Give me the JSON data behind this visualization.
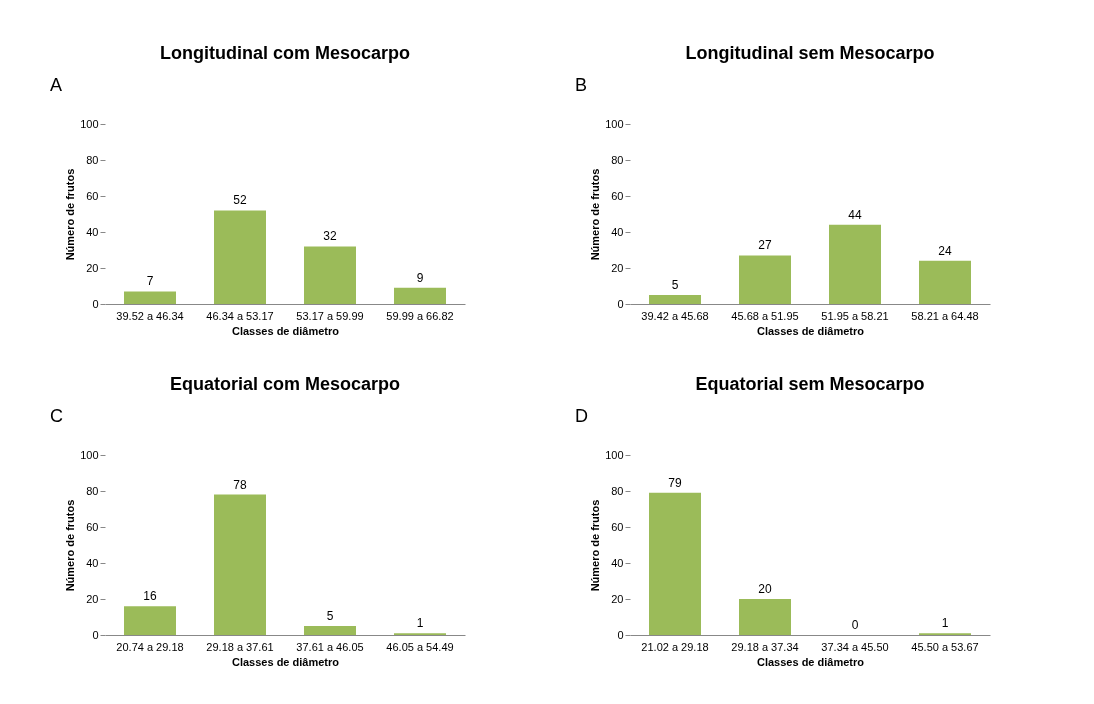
{
  "chart_data": [
    {
      "type": "bar",
      "title": "Longitudinal com Mesocarpo",
      "annotations": [
        "A"
      ],
      "xlabel": "Classes de diâmetro",
      "ylabel": "Número de frutos",
      "categories": [
        "39.52 a 46.34",
        "46.34 a 53.17",
        "53.17 a 59.99",
        "59.99 a 66.82"
      ],
      "values": [
        7,
        52,
        32,
        9
      ],
      "color": "#9bbb59",
      "ylim": [
        0,
        100
      ],
      "yticks": [
        0,
        20,
        40,
        60,
        80,
        100
      ],
      "data_labels": true,
      "grid": false
    },
    {
      "type": "bar",
      "title": "Longitudinal sem Mesocarpo",
      "annotations": [
        "B"
      ],
      "xlabel": "Classes de diâmetro",
      "ylabel": "Número de frutos",
      "categories": [
        "39.42 a 45.68",
        "45.68 a 51.95",
        "51.95 a 58.21",
        "58.21 a 64.48"
      ],
      "values": [
        5,
        27,
        44,
        24
      ],
      "color": "#9bbb59",
      "ylim": [
        0,
        100
      ],
      "yticks": [
        0,
        20,
        40,
        60,
        80,
        100
      ],
      "data_labels": true,
      "grid": false
    },
    {
      "type": "bar",
      "title": "Equatorial com Mesocarpo",
      "annotations": [
        "C"
      ],
      "xlabel": "Classes de diâmetro",
      "ylabel": "Número de frutos",
      "categories": [
        "20.74 a 29.18",
        "29.18 a 37.61",
        "37.61 a 46.05",
        "46.05 a 54.49"
      ],
      "values": [
        16,
        78,
        5,
        1
      ],
      "color": "#9bbb59",
      "ylim": [
        0,
        100
      ],
      "yticks": [
        0,
        20,
        40,
        60,
        80,
        100
      ],
      "data_labels": true,
      "grid": false
    },
    {
      "type": "bar",
      "title": "Equatorial sem Mesocarpo",
      "annotations": [
        "D"
      ],
      "xlabel": "Classes de diâmetro",
      "ylabel": "Número de frutos",
      "categories": [
        "21.02  a 29.18",
        "29.18 a 37.34",
        "37.34 a 45.50",
        "45.50 a 53.67"
      ],
      "values": [
        79,
        20,
        0,
        1
      ],
      "color": "#9bbb59",
      "ylim": [
        0,
        100
      ],
      "yticks": [
        0,
        20,
        40,
        60,
        80,
        100
      ],
      "data_labels": true,
      "grid": false
    }
  ]
}
